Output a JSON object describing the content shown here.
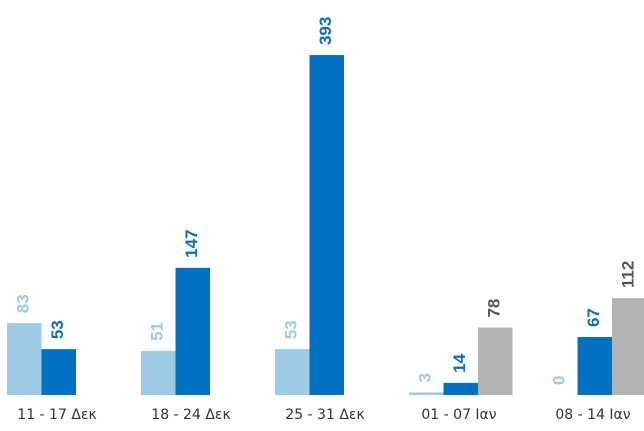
{
  "chart_data": {
    "type": "bar",
    "categories": [
      "11 - 17 Δεκ",
      "18 - 24 Δεκ",
      "25 - 31 Δεκ",
      "01 - 07 Ιαν",
      "08 - 14 Ιαν"
    ],
    "series": [
      {
        "color": "#9ecae6",
        "label_color": "#9ecae6",
        "values": [
          83,
          51,
          53,
          3,
          0
        ]
      },
      {
        "color": "#0070c0",
        "label_color": "#0a6cb8",
        "values": [
          53,
          147,
          393,
          14,
          67
        ]
      },
      {
        "color": "#b3b3b3",
        "label_color": "#555555",
        "values": [
          null,
          null,
          null,
          78,
          112
        ]
      }
    ]
  }
}
